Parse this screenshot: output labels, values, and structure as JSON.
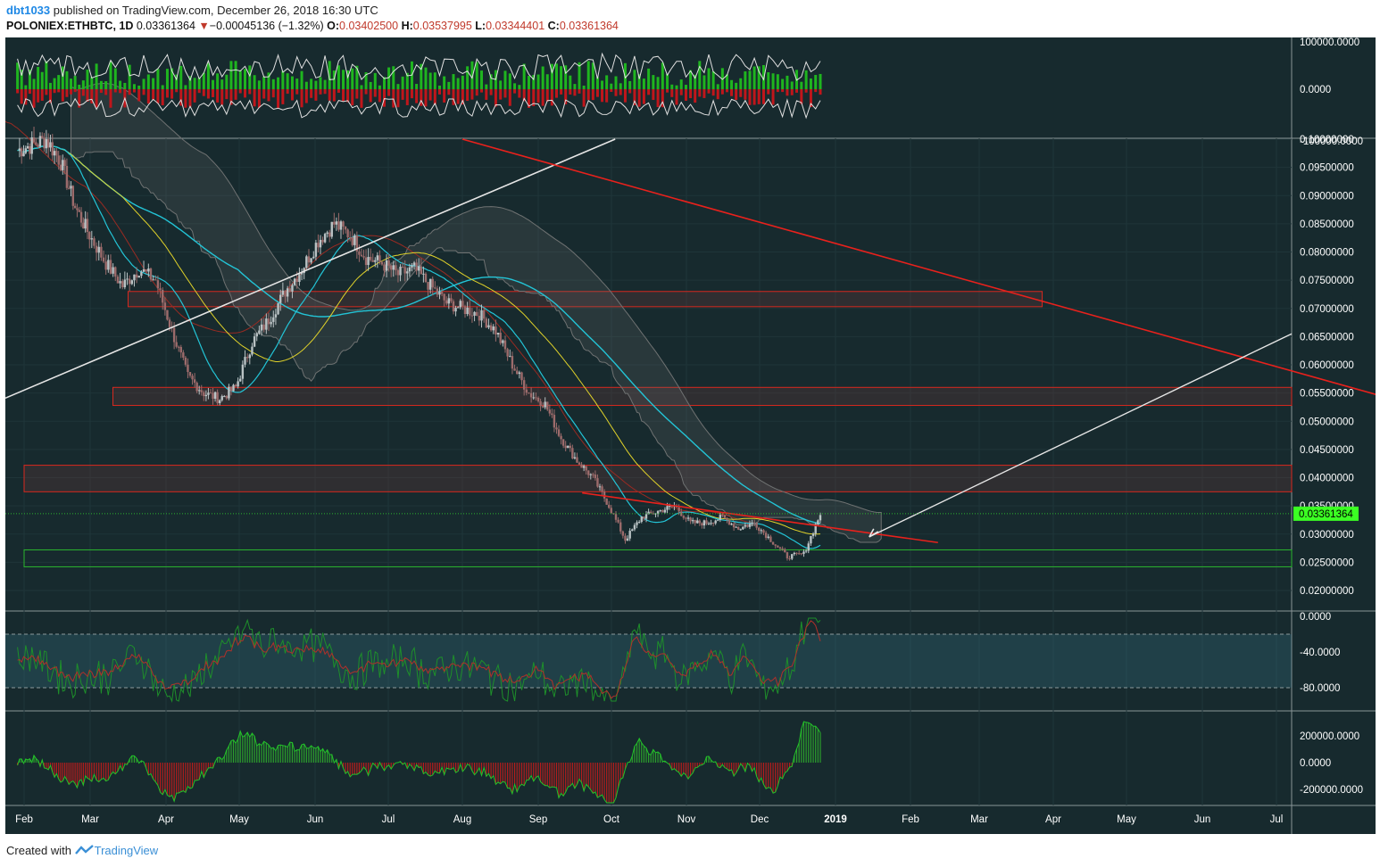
{
  "header": {
    "user": "dbt1033",
    "published": " published on TradingView.com, December 26, 2018 16:30 UTC",
    "symbol": "POLONIEX:ETHBTC, 1D",
    "last": "0.03361364",
    "change_arrow": "▼",
    "change": "−0.00045136 (−1.32%)",
    "o_label": "O:",
    "o_value": "0.03402500",
    "h_label": "H:",
    "h_value": "0.03537995",
    "l_label": "L:",
    "l_value": "0.03344401",
    "c_label": "C:",
    "c_value": "0.03361364"
  },
  "footer": {
    "created_with": "Created with",
    "brand": "TradingView",
    "logo_icon": "tradingview-logo-icon"
  },
  "colors": {
    "background": "#172a2e",
    "grid": "#1f3539",
    "axis_text": "#ffffff",
    "cyan": "#23c4d6",
    "yellow": "#e0d22a",
    "darkred": "#9a2a22",
    "cloud": "#4a4d4e",
    "trend_red": "#e8211c",
    "trend_white": "#e6e6e6",
    "zone_red": "#d8281e",
    "zone_green": "#2bb52e",
    "price_tag": "#3bff23"
  },
  "chart_data": {
    "type": "candlestick",
    "symbol": "POLONIEX:ETHBTC",
    "interval": "1D",
    "x_ticks": [
      "Feb",
      "Mar",
      "Apr",
      "May",
      "Jun",
      "Jul",
      "Aug",
      "Sep",
      "Oct",
      "Nov",
      "Dec",
      "2019",
      "Feb",
      "Mar",
      "Apr",
      "May",
      "Jun",
      "Jul"
    ],
    "price": {
      "y_ticks": [
        "0.10000000",
        "0.09500000",
        "0.09000000",
        "0.08500000",
        "0.08000000",
        "0.07500000",
        "0.07000000",
        "0.06500000",
        "0.06000000",
        "0.05500000",
        "0.05000000",
        "0.04500000",
        "0.04000000",
        "0.03500000",
        "0.03000000",
        "0.02500000",
        "0.02000000"
      ],
      "ylim": [
        0.0168,
        0.1
      ],
      "last_price_label": "0.03361364",
      "last_price": 0.03361364,
      "closes_weekly": [
        0.098,
        0.099,
        0.1,
        0.096,
        0.088,
        0.083,
        0.078,
        0.074,
        0.077,
        0.075,
        0.066,
        0.058,
        0.055,
        0.054,
        0.056,
        0.064,
        0.068,
        0.073,
        0.077,
        0.082,
        0.085,
        0.083,
        0.079,
        0.078,
        0.076,
        0.077,
        0.074,
        0.071,
        0.07,
        0.069,
        0.066,
        0.06,
        0.055,
        0.053,
        0.047,
        0.043,
        0.04,
        0.035,
        0.029,
        0.033,
        0.034,
        0.035,
        0.032,
        0.032,
        0.033,
        0.031,
        0.032,
        0.029,
        0.026,
        0.0265,
        0.0336
      ],
      "zones": [
        {
          "type": "resistance",
          "color": "red",
          "top": 0.073,
          "bottom": 0.0703,
          "start_month": 1.5,
          "end_month": 13.85
        },
        {
          "type": "resistance",
          "color": "red",
          "top": 0.056,
          "bottom": 0.0528,
          "start_month": 1.3,
          "end_month": 17.4
        },
        {
          "type": "resistance",
          "color": "red",
          "top": 0.0422,
          "bottom": 0.0375,
          "start_month": 0,
          "end_month": 17.4
        },
        {
          "type": "support",
          "color": "green",
          "top": 0.0272,
          "bottom": 0.0242,
          "start_month": 0,
          "end_month": 17.4
        }
      ]
    },
    "panel_top": {
      "y_ticks": [
        "100000.0000",
        "0.0000",
        "-100000.0000"
      ]
    },
    "oscillator": {
      "y_ticks": [
        "0.0000",
        "-40.0000",
        "-80.0000"
      ],
      "bands": [
        -20,
        -80
      ]
    },
    "panel_bottom": {
      "y_ticks": [
        "200000.0000",
        "0.0000",
        "-200000.0000"
      ]
    }
  }
}
